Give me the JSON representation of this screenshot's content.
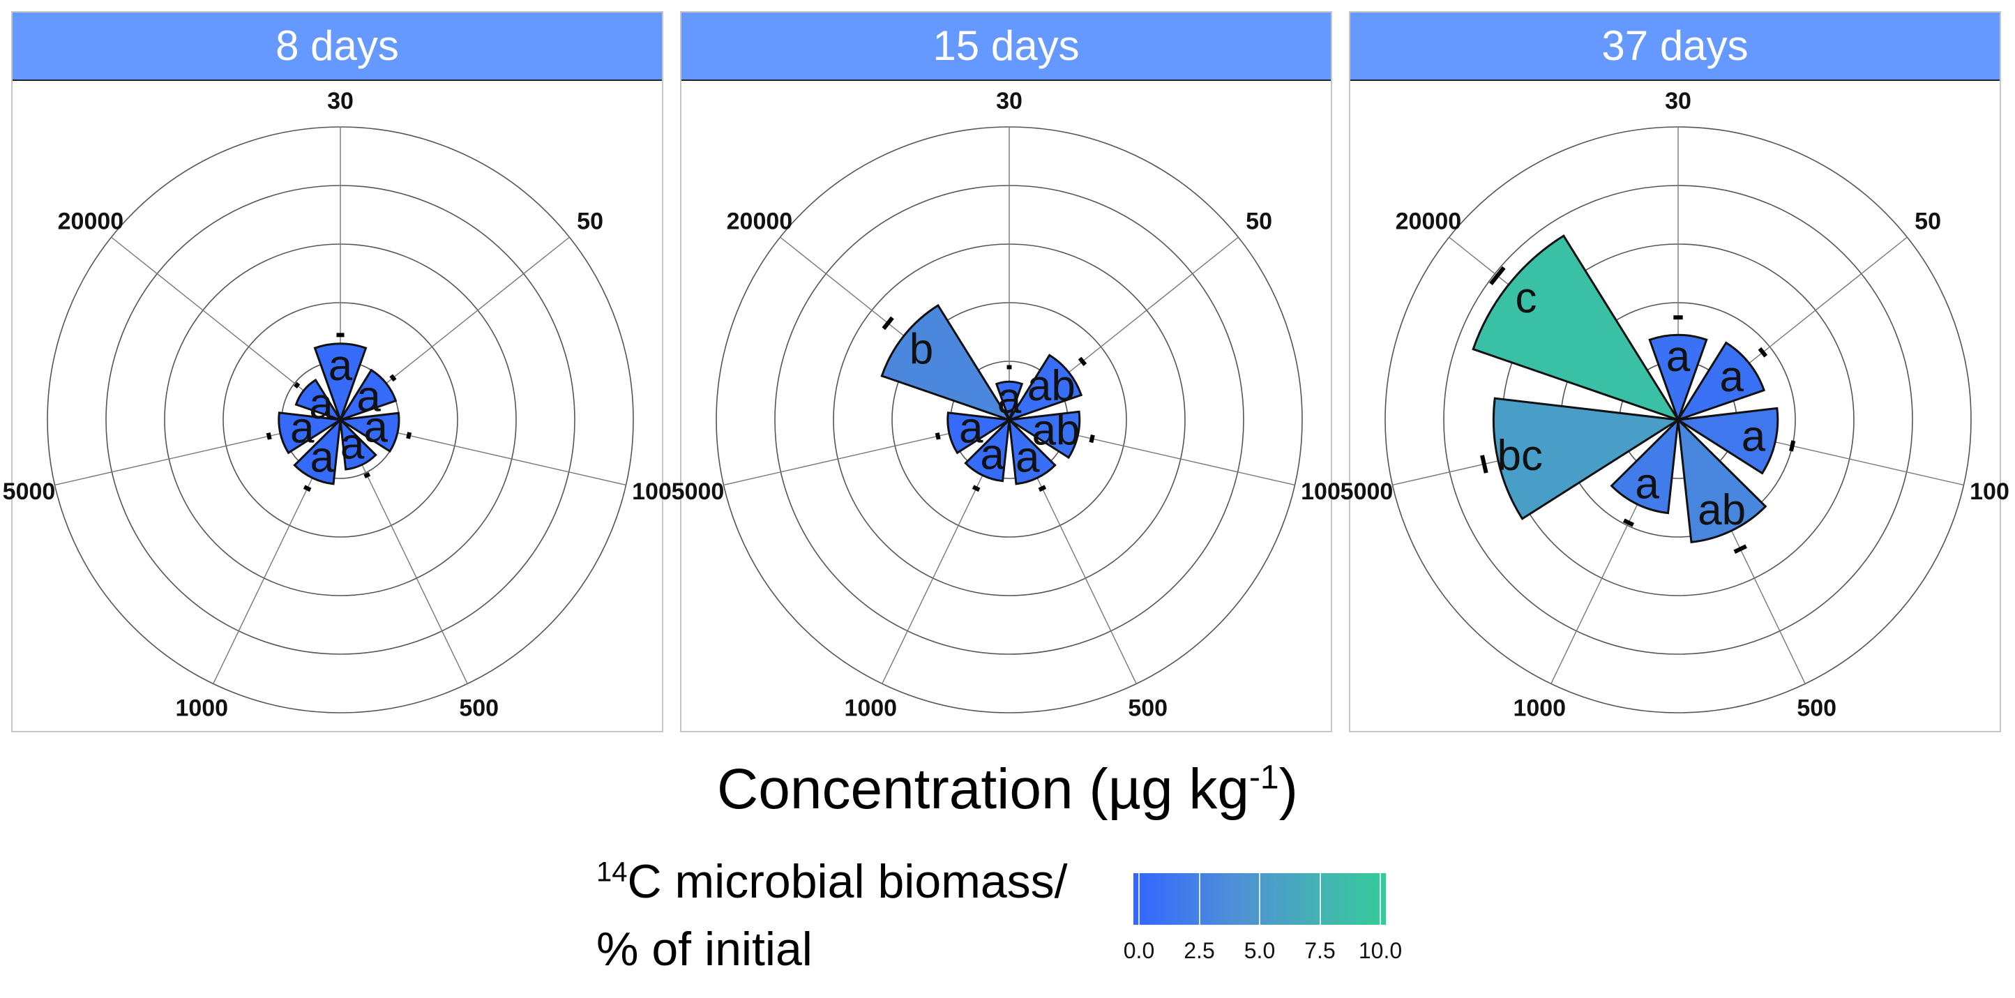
{
  "chart_data": {
    "type": "polar-bar",
    "categories": [
      "30",
      "50",
      "100",
      "500",
      "1000",
      "5000",
      "20000"
    ],
    "x_title": "Concentration (µg kg-1)",
    "x_title_main": "Concentration",
    "x_title_unit": "(µg kg",
    "x_title_sup": "-1",
    "x_title_close": ")",
    "radial_range": [
      0,
      10
    ],
    "panels": [
      {
        "title": "8 days",
        "values": [
          2.6,
          2.0,
          2.0,
          1.7,
          2.2,
          2.1,
          1.6
        ],
        "upper": [
          2.9,
          2.3,
          2.4,
          2.1,
          2.6,
          2.5,
          1.9
        ],
        "colors": [
          0.6,
          0.5,
          0.5,
          0.4,
          0.6,
          0.5,
          0.4
        ],
        "letters": [
          "a",
          "a",
          "a",
          "a",
          "a",
          "a",
          "a"
        ]
      },
      {
        "title": "15 days",
        "values": [
          1.3,
          2.6,
          2.4,
          2.2,
          2.1,
          2.1,
          4.6
        ],
        "upper": [
          1.8,
          3.2,
          2.9,
          2.6,
          2.6,
          2.5,
          5.3
        ],
        "colors": [
          0.6,
          1.0,
          1.3,
          1.1,
          0.7,
          0.6,
          4.2
        ],
        "letters": [
          "a",
          "ab",
          "ab",
          "a",
          "a",
          "a",
          "b"
        ]
      },
      {
        "title": "37 days",
        "values": [
          2.9,
          3.1,
          3.4,
          4.2,
          3.2,
          6.3,
          7.4
        ],
        "upper": [
          3.5,
          3.7,
          4.0,
          4.9,
          3.9,
          6.8,
          7.9
        ],
        "colors": [
          1.4,
          1.3,
          2.1,
          4.0,
          2.6,
          6.2,
          9.0
        ],
        "letters": [
          "a",
          "a",
          "a",
          "ab",
          "a",
          "bc",
          "c"
        ]
      }
    ],
    "legend": {
      "title_sup": "14",
      "title_line1": "C microbial biomass/",
      "title_line2": "% of initial",
      "ticks": [
        "0.0",
        "2.5",
        "5.0",
        "7.5",
        "10.0"
      ],
      "low_color": "#3366ff",
      "high_color": "#33cc99"
    }
  }
}
